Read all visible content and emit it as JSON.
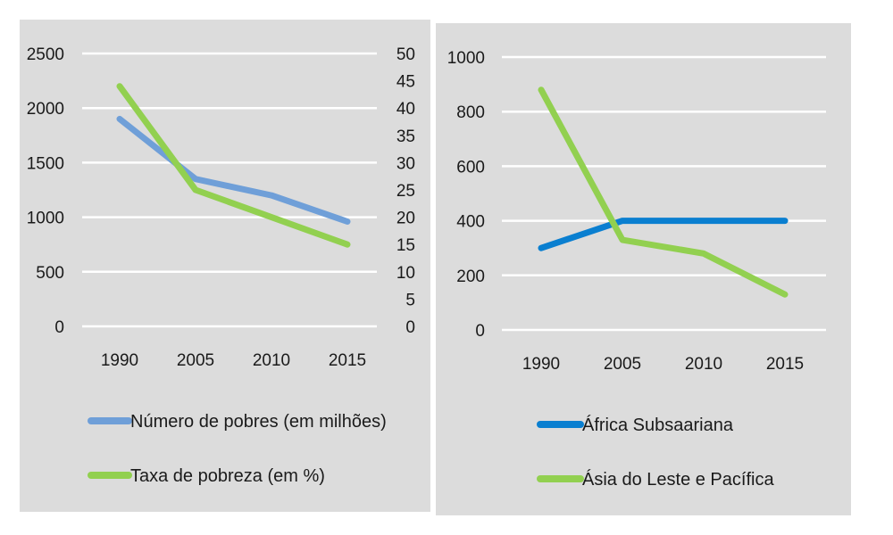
{
  "chart_data": [
    {
      "type": "line",
      "categories": [
        "1990",
        "2005",
        "2010",
        "2015"
      ],
      "series": [
        {
          "name": "Número de pobres (em milhões)",
          "values": [
            1900,
            1350,
            1200,
            960
          ],
          "axis": "left",
          "color": "#6f9fd8"
        },
        {
          "name": "Taxa de pobreza (em %)",
          "values": [
            44,
            25,
            20,
            15
          ],
          "axis": "right",
          "color": "#92d050"
        }
      ],
      "y_left": {
        "min": 0,
        "max": 2500,
        "ticks": [
          "0",
          "500",
          "1000",
          "1500",
          "2000",
          "2500"
        ]
      },
      "y_right": {
        "min": 0,
        "max": 50,
        "ticks": [
          "0",
          "5",
          "10",
          "15",
          "20",
          "25",
          "30",
          "35",
          "40",
          "45",
          "50"
        ]
      },
      "grid": true,
      "legend_position": "bottom"
    },
    {
      "type": "line",
      "categories": [
        "1990",
        "2005",
        "2010",
        "2015"
      ],
      "series": [
        {
          "name": "África Subsaariana",
          "values": [
            300,
            400,
            400,
            400
          ],
          "color": "#0a7fd0"
        },
        {
          "name": "Ásia do Leste e Pacífica",
          "values": [
            880,
            330,
            280,
            130
          ],
          "color": "#92d050"
        }
      ],
      "y_left": {
        "min": 0,
        "max": 1000,
        "ticks": [
          "0",
          "200",
          "400",
          "600",
          "800",
          "1000"
        ]
      },
      "grid": true,
      "legend_position": "bottom"
    }
  ]
}
